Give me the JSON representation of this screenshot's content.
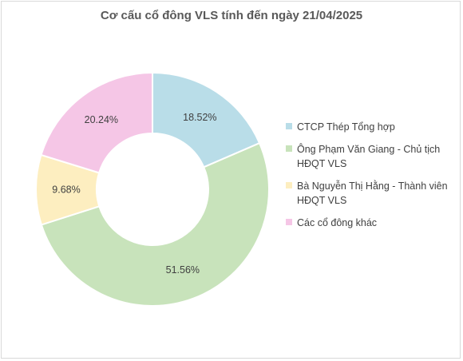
{
  "chart_data": {
    "type": "pie",
    "subtype": "donut",
    "title": "Cơ cấu cổ đông VLS tính đến ngày 21/04/2025",
    "legend_position": "right",
    "series": [
      {
        "name": "CTCP Thép Tổng hợp",
        "value": 18.52,
        "label": "18.52%",
        "color": "#b9dde8"
      },
      {
        "name": "Ông Phạm Văn Giang - Chủ tịch HĐQT VLS",
        "value": 51.56,
        "label": "51.56%",
        "color": "#c8e3bb"
      },
      {
        "name": "Bà Nguyễn Thị Hằng - Thành viên HĐQT VLS",
        "value": 9.68,
        "label": "9.68%",
        "color": "#fdeec0"
      },
      {
        "name": "Các cổ đông khác",
        "value": 20.24,
        "label": "20.24%",
        "color": "#f5c6e6"
      }
    ]
  }
}
